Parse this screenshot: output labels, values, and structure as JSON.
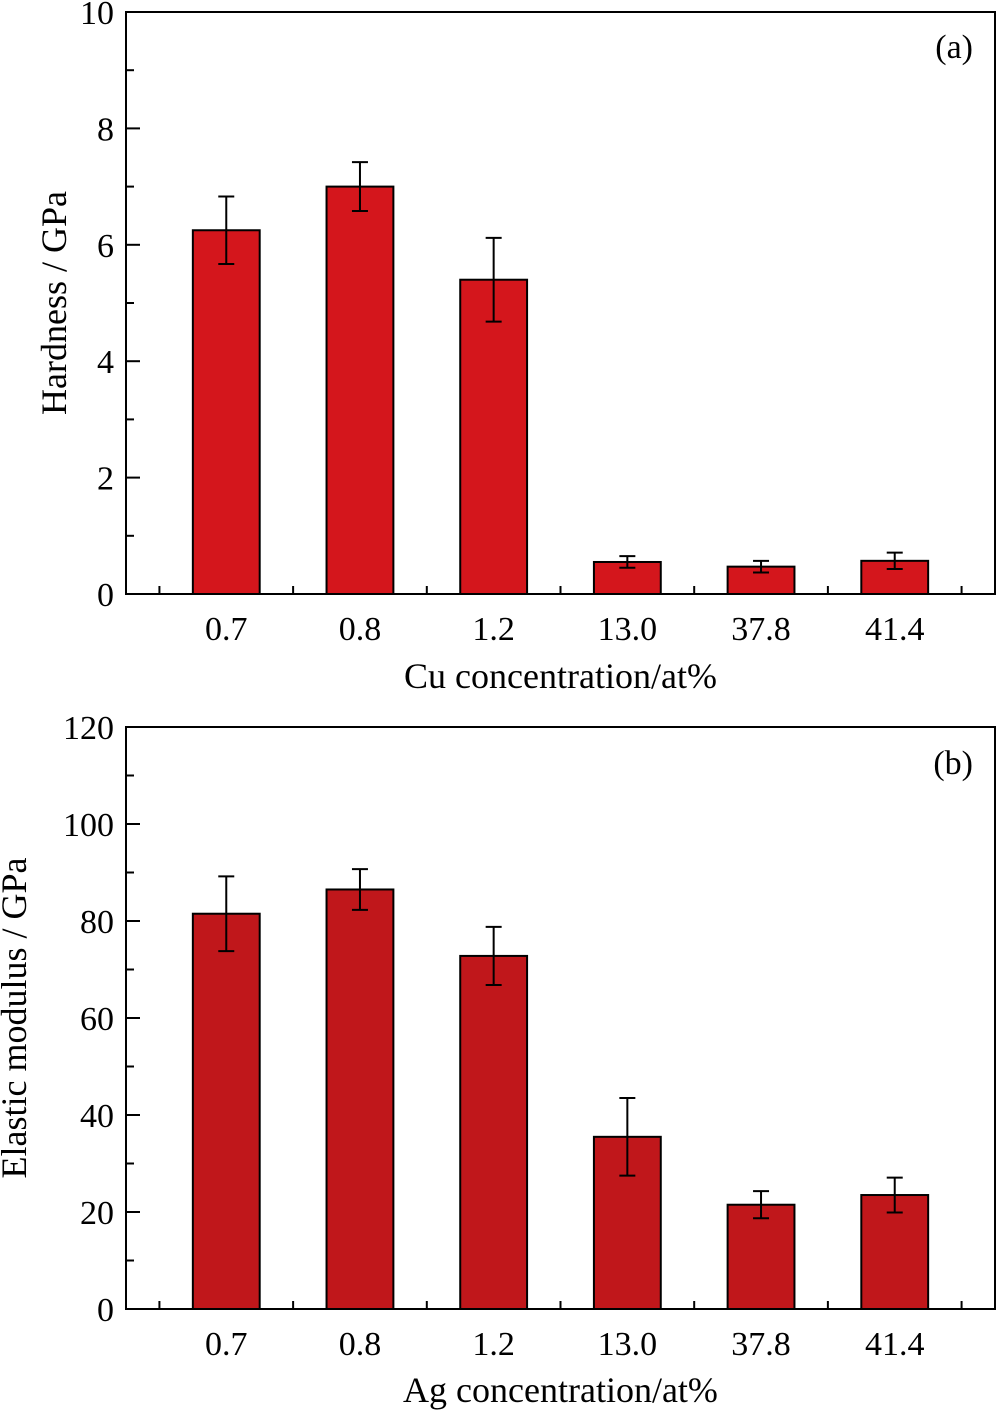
{
  "chart_data": [
    {
      "type": "bar",
      "panel_label": "(a)",
      "categories": [
        "0.7",
        "0.8",
        "1.2",
        "13.0",
        "37.8",
        "41.4"
      ],
      "values": [
        6.25,
        7.0,
        5.4,
        0.55,
        0.47,
        0.57
      ],
      "error": [
        0.58,
        0.42,
        0.72,
        0.1,
        0.1,
        0.14
      ],
      "xlabel": "Cu concentration/at%",
      "ylabel": "Hardness / GPa",
      "ylim": [
        0,
        10
      ],
      "yticks": [
        0,
        2,
        4,
        6,
        8,
        10
      ],
      "bar_color": "#d4161c",
      "grid": false
    },
    {
      "type": "bar",
      "panel_label": "(b)",
      "categories": [
        "0.7",
        "0.8",
        "1.2",
        "13.0",
        "37.8",
        "41.4"
      ],
      "values": [
        81.5,
        86.5,
        72.8,
        35.5,
        21.5,
        23.5
      ],
      "error": [
        7.7,
        4.2,
        6.0,
        8.0,
        2.8,
        3.6
      ],
      "xlabel": "Ag concentration/at%",
      "ylabel": "Elastic modulus / GPa",
      "ylim": [
        0,
        120
      ],
      "yticks": [
        0,
        20,
        40,
        60,
        80,
        100,
        120
      ],
      "bar_color": "#c0171b",
      "grid": false
    }
  ]
}
